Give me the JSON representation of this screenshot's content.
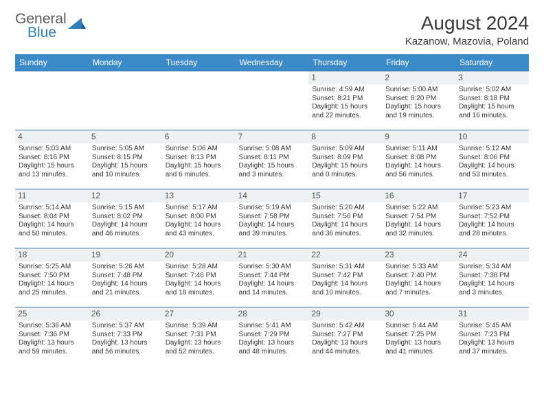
{
  "logo": {
    "general": "General",
    "blue": "Blue"
  },
  "title": "August 2024",
  "location": "Kazanow, Mazovia, Poland",
  "colors": {
    "header_bg": "#3b8bc8",
    "header_text": "#ffffff",
    "daynum_bg": "#eef0f1",
    "border": "#2d6fa3",
    "logo_gray": "#5a5a5a",
    "logo_blue": "#2d7cc0"
  },
  "weekdays": [
    "Sunday",
    "Monday",
    "Tuesday",
    "Wednesday",
    "Thursday",
    "Friday",
    "Saturday"
  ],
  "weeks": [
    [
      null,
      null,
      null,
      null,
      {
        "n": "1",
        "sr": "4:59 AM",
        "ss": "8:21 PM",
        "dl": "15 hours and 22 minutes."
      },
      {
        "n": "2",
        "sr": "5:00 AM",
        "ss": "8:20 PM",
        "dl": "15 hours and 19 minutes."
      },
      {
        "n": "3",
        "sr": "5:02 AM",
        "ss": "8:18 PM",
        "dl": "15 hours and 16 minutes."
      }
    ],
    [
      {
        "n": "4",
        "sr": "5:03 AM",
        "ss": "8:16 PM",
        "dl": "15 hours and 13 minutes."
      },
      {
        "n": "5",
        "sr": "5:05 AM",
        "ss": "8:15 PM",
        "dl": "15 hours and 10 minutes."
      },
      {
        "n": "6",
        "sr": "5:06 AM",
        "ss": "8:13 PM",
        "dl": "15 hours and 6 minutes."
      },
      {
        "n": "7",
        "sr": "5:08 AM",
        "ss": "8:11 PM",
        "dl": "15 hours and 3 minutes."
      },
      {
        "n": "8",
        "sr": "5:09 AM",
        "ss": "8:09 PM",
        "dl": "15 hours and 0 minutes."
      },
      {
        "n": "9",
        "sr": "5:11 AM",
        "ss": "8:08 PM",
        "dl": "14 hours and 56 minutes."
      },
      {
        "n": "10",
        "sr": "5:12 AM",
        "ss": "8:06 PM",
        "dl": "14 hours and 53 minutes."
      }
    ],
    [
      {
        "n": "11",
        "sr": "5:14 AM",
        "ss": "8:04 PM",
        "dl": "14 hours and 50 minutes."
      },
      {
        "n": "12",
        "sr": "5:15 AM",
        "ss": "8:02 PM",
        "dl": "14 hours and 46 minutes."
      },
      {
        "n": "13",
        "sr": "5:17 AM",
        "ss": "8:00 PM",
        "dl": "14 hours and 43 minutes."
      },
      {
        "n": "14",
        "sr": "5:19 AM",
        "ss": "7:58 PM",
        "dl": "14 hours and 39 minutes."
      },
      {
        "n": "15",
        "sr": "5:20 AM",
        "ss": "7:56 PM",
        "dl": "14 hours and 36 minutes."
      },
      {
        "n": "16",
        "sr": "5:22 AM",
        "ss": "7:54 PM",
        "dl": "14 hours and 32 minutes."
      },
      {
        "n": "17",
        "sr": "5:23 AM",
        "ss": "7:52 PM",
        "dl": "14 hours and 28 minutes."
      }
    ],
    [
      {
        "n": "18",
        "sr": "5:25 AM",
        "ss": "7:50 PM",
        "dl": "14 hours and 25 minutes."
      },
      {
        "n": "19",
        "sr": "5:26 AM",
        "ss": "7:48 PM",
        "dl": "14 hours and 21 minutes."
      },
      {
        "n": "20",
        "sr": "5:28 AM",
        "ss": "7:46 PM",
        "dl": "14 hours and 18 minutes."
      },
      {
        "n": "21",
        "sr": "5:30 AM",
        "ss": "7:44 PM",
        "dl": "14 hours and 14 minutes."
      },
      {
        "n": "22",
        "sr": "5:31 AM",
        "ss": "7:42 PM",
        "dl": "14 hours and 10 minutes."
      },
      {
        "n": "23",
        "sr": "5:33 AM",
        "ss": "7:40 PM",
        "dl": "14 hours and 7 minutes."
      },
      {
        "n": "24",
        "sr": "5:34 AM",
        "ss": "7:38 PM",
        "dl": "14 hours and 3 minutes."
      }
    ],
    [
      {
        "n": "25",
        "sr": "5:36 AM",
        "ss": "7:36 PM",
        "dl": "13 hours and 59 minutes."
      },
      {
        "n": "26",
        "sr": "5:37 AM",
        "ss": "7:33 PM",
        "dl": "13 hours and 56 minutes."
      },
      {
        "n": "27",
        "sr": "5:39 AM",
        "ss": "7:31 PM",
        "dl": "13 hours and 52 minutes."
      },
      {
        "n": "28",
        "sr": "5:41 AM",
        "ss": "7:29 PM",
        "dl": "13 hours and 48 minutes."
      },
      {
        "n": "29",
        "sr": "5:42 AM",
        "ss": "7:27 PM",
        "dl": "13 hours and 44 minutes."
      },
      {
        "n": "30",
        "sr": "5:44 AM",
        "ss": "7:25 PM",
        "dl": "13 hours and 41 minutes."
      },
      {
        "n": "31",
        "sr": "5:45 AM",
        "ss": "7:23 PM",
        "dl": "13 hours and 37 minutes."
      }
    ]
  ],
  "labels": {
    "sunrise": "Sunrise: ",
    "sunset": "Sunset: ",
    "daylight": "Daylight: "
  }
}
